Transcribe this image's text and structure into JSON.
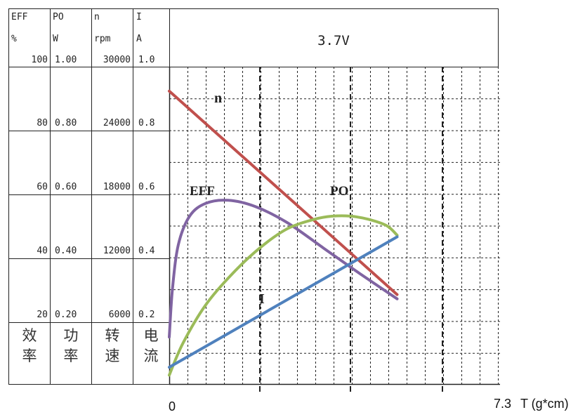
{
  "chart_data": {
    "type": "line",
    "title": "3.7V",
    "xlabel": "T (g*cm)",
    "x_start_label": "0",
    "x_end_label": "7.3",
    "xlim": [
      0,
      7.3
    ],
    "axes": [
      {
        "id": "eff",
        "head1": "EFF",
        "head2": "%",
        "head3": "100",
        "ticks": [
          "80",
          "60",
          "40",
          "20"
        ],
        "footer": [
          "效",
          "率"
        ],
        "max": 100
      },
      {
        "id": "po",
        "head1": "PO",
        "head2": "W",
        "head3": "1.00",
        "ticks": [
          "0.80",
          "0.60",
          "0.40",
          "0.20"
        ],
        "footer": [
          "功",
          "率"
        ],
        "max": 1.0
      },
      {
        "id": "n",
        "head1": "n",
        "head2": "rpm",
        "head3": "30000",
        "ticks": [
          "24000",
          "18000",
          "12000",
          "6000"
        ],
        "footer": [
          "转",
          "速"
        ],
        "max": 30000
      },
      {
        "id": "i",
        "head1": "I",
        "head2": "A",
        "head3": "1.0",
        "ticks": [
          "0.8",
          "0.6",
          "0.4",
          "0.2"
        ],
        "footer": [
          "电",
          "流"
        ],
        "max": 1.0
      }
    ],
    "series": [
      {
        "name": "n",
        "color": "#c0504d",
        "axis": "n",
        "x": [
          0,
          5.03
        ],
        "y": [
          27700,
          8500
        ]
      },
      {
        "name": "EFF",
        "color": "#8064a2",
        "axis": "eff",
        "x": [
          0,
          0.07,
          0.2,
          0.45,
          0.8,
          1.3,
          1.9,
          2.6,
          3.4,
          4.2,
          5.03
        ],
        "y": [
          15,
          30,
          44,
          53,
          57,
          58,
          56,
          51,
          43,
          35,
          27
        ]
      },
      {
        "name": "PO",
        "color": "#9bbb59",
        "axis": "po",
        "x": [
          0,
          0.3,
          0.8,
          1.4,
          2.0,
          2.6,
          3.2,
          3.6,
          4.0,
          4.4,
          4.8,
          5.03
        ],
        "y": [
          0.03,
          0.13,
          0.25,
          0.35,
          0.43,
          0.49,
          0.52,
          0.53,
          0.53,
          0.52,
          0.5,
          0.47
        ]
      },
      {
        "name": "I",
        "color": "#4f81bd",
        "axis": "i",
        "x": [
          0,
          5.03
        ],
        "y": [
          0.055,
          0.465
        ]
      }
    ]
  }
}
